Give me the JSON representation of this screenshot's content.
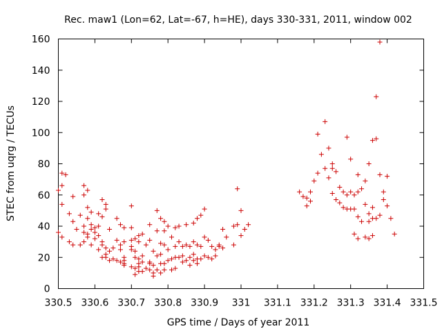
{
  "chart_data": {
    "type": "scatter",
    "title": "Rec. maw1 (Lon=62, Lat=-67, h=HE), days 330-331, 2011, window 002",
    "xlabel": "GPS time / Days of year 2011",
    "ylabel": "STEC from uqrg / TECUs",
    "xlim": [
      330.5,
      331.5
    ],
    "ylim": [
      0,
      160
    ],
    "x_ticks": [
      330.5,
      330.6,
      330.7,
      330.8,
      330.9,
      331.0,
      331.1,
      331.2,
      331.3,
      331.4,
      331.5
    ],
    "x_tick_labels": [
      "330.5",
      "330.6",
      "330.7",
      "330.8",
      "330.9",
      "331",
      "331.1",
      "331.2",
      "331.3",
      "331.4",
      "331.5"
    ],
    "y_ticks": [
      0,
      20,
      40,
      60,
      80,
      100,
      120,
      140,
      160
    ],
    "y_tick_labels": [
      "0",
      "20",
      "40",
      "60",
      "80",
      "100",
      "120",
      "140",
      "160"
    ],
    "grid": false,
    "legend": "none",
    "marker": "+",
    "color": "#cc0000",
    "points": [
      [
        330.5,
        63
      ],
      [
        330.5,
        36
      ],
      [
        330.51,
        74
      ],
      [
        330.51,
        66
      ],
      [
        330.51,
        54
      ],
      [
        330.51,
        33
      ],
      [
        330.52,
        73
      ],
      [
        330.53,
        48
      ],
      [
        330.53,
        30
      ],
      [
        330.54,
        59
      ],
      [
        330.54,
        43
      ],
      [
        330.54,
        28
      ],
      [
        330.55,
        38
      ],
      [
        330.56,
        47
      ],
      [
        330.56,
        28
      ],
      [
        330.57,
        66
      ],
      [
        330.57,
        60
      ],
      [
        330.57,
        40
      ],
      [
        330.57,
        36
      ],
      [
        330.57,
        30
      ],
      [
        330.58,
        63
      ],
      [
        330.58,
        52
      ],
      [
        330.58,
        45
      ],
      [
        330.58,
        35
      ],
      [
        330.58,
        33
      ],
      [
        330.59,
        49
      ],
      [
        330.59,
        41
      ],
      [
        330.59,
        38
      ],
      [
        330.59,
        28
      ],
      [
        330.6,
        39
      ],
      [
        330.6,
        36
      ],
      [
        330.6,
        32
      ],
      [
        330.61,
        48
      ],
      [
        330.61,
        40
      ],
      [
        330.61,
        34
      ],
      [
        330.61,
        25
      ],
      [
        330.62,
        57
      ],
      [
        330.62,
        46
      ],
      [
        330.62,
        30
      ],
      [
        330.62,
        28
      ],
      [
        330.62,
        20
      ],
      [
        330.63,
        54
      ],
      [
        330.63,
        51
      ],
      [
        330.63,
        26
      ],
      [
        330.63,
        22
      ],
      [
        330.63,
        20
      ],
      [
        330.64,
        38
      ],
      [
        330.64,
        24
      ],
      [
        330.64,
        18
      ],
      [
        330.65,
        26
      ],
      [
        330.65,
        19
      ],
      [
        330.66,
        45
      ],
      [
        330.66,
        31
      ],
      [
        330.66,
        18
      ],
      [
        330.67,
        41
      ],
      [
        330.67,
        28
      ],
      [
        330.67,
        25
      ],
      [
        330.67,
        17
      ],
      [
        330.68,
        39
      ],
      [
        330.68,
        30
      ],
      [
        330.68,
        20
      ],
      [
        330.68,
        18
      ],
      [
        330.68,
        16
      ],
      [
        330.68,
        15
      ],
      [
        330.7,
        53
      ],
      [
        330.7,
        39
      ],
      [
        330.7,
        31
      ],
      [
        330.7,
        27
      ],
      [
        330.7,
        25
      ],
      [
        330.7,
        14
      ],
      [
        330.71,
        32
      ],
      [
        330.71,
        24
      ],
      [
        330.71,
        20
      ],
      [
        330.71,
        13
      ],
      [
        330.71,
        9
      ],
      [
        330.72,
        34
      ],
      [
        330.72,
        30
      ],
      [
        330.72,
        19
      ],
      [
        330.72,
        16
      ],
      [
        330.72,
        14
      ],
      [
        330.72,
        11
      ],
      [
        330.73,
        35
      ],
      [
        330.73,
        21
      ],
      [
        330.73,
        17
      ],
      [
        330.73,
        11
      ],
      [
        330.74,
        28
      ],
      [
        330.74,
        13
      ],
      [
        330.75,
        41
      ],
      [
        330.75,
        31
      ],
      [
        330.75,
        17
      ],
      [
        330.75,
        16
      ],
      [
        330.75,
        12
      ],
      [
        330.76,
        24
      ],
      [
        330.76,
        15
      ],
      [
        330.76,
        10
      ],
      [
        330.76,
        8
      ],
      [
        330.77,
        50
      ],
      [
        330.77,
        37
      ],
      [
        330.77,
        21
      ],
      [
        330.77,
        12
      ],
      [
        330.78,
        45
      ],
      [
        330.78,
        29
      ],
      [
        330.78,
        22
      ],
      [
        330.78,
        16
      ],
      [
        330.78,
        10
      ],
      [
        330.79,
        43
      ],
      [
        330.79,
        37
      ],
      [
        330.79,
        28
      ],
      [
        330.79,
        16
      ],
      [
        330.79,
        12
      ],
      [
        330.8,
        40
      ],
      [
        330.8,
        25
      ],
      [
        330.8,
        18
      ],
      [
        330.81,
        33
      ],
      [
        330.81,
        19
      ],
      [
        330.81,
        12
      ],
      [
        330.82,
        39
      ],
      [
        330.82,
        27
      ],
      [
        330.82,
        20
      ],
      [
        330.82,
        13
      ],
      [
        330.83,
        40
      ],
      [
        330.83,
        30
      ],
      [
        330.83,
        20
      ],
      [
        330.84,
        27
      ],
      [
        330.84,
        21
      ],
      [
        330.84,
        17
      ],
      [
        330.85,
        41
      ],
      [
        330.85,
        28
      ],
      [
        330.85,
        18
      ],
      [
        330.86,
        27
      ],
      [
        330.86,
        20
      ],
      [
        330.86,
        15
      ],
      [
        330.87,
        42
      ],
      [
        330.87,
        30
      ],
      [
        330.87,
        22
      ],
      [
        330.87,
        18
      ],
      [
        330.88,
        45
      ],
      [
        330.88,
        28
      ],
      [
        330.88,
        19
      ],
      [
        330.88,
        16
      ],
      [
        330.89,
        47
      ],
      [
        330.89,
        27
      ],
      [
        330.89,
        19
      ],
      [
        330.9,
        51
      ],
      [
        330.9,
        33
      ],
      [
        330.9,
        21
      ],
      [
        330.91,
        31
      ],
      [
        330.91,
        20
      ],
      [
        330.92,
        27
      ],
      [
        330.92,
        19
      ],
      [
        330.93,
        25
      ],
      [
        330.93,
        21
      ],
      [
        330.94,
        27
      ],
      [
        330.94,
        28
      ],
      [
        330.95,
        26
      ],
      [
        330.95,
        38
      ],
      [
        330.96,
        33
      ],
      [
        330.98,
        40
      ],
      [
        330.98,
        28
      ],
      [
        330.99,
        64
      ],
      [
        330.99,
        41
      ],
      [
        331.0,
        50
      ],
      [
        331.0,
        34
      ],
      [
        331.01,
        38
      ],
      [
        331.02,
        41
      ],
      [
        331.16,
        62
      ],
      [
        331.17,
        59
      ],
      [
        331.18,
        58
      ],
      [
        331.18,
        53
      ],
      [
        331.19,
        62
      ],
      [
        331.19,
        56
      ],
      [
        331.2,
        69
      ],
      [
        331.21,
        74
      ],
      [
        331.21,
        99
      ],
      [
        331.22,
        86
      ],
      [
        331.23,
        107
      ],
      [
        331.23,
        77
      ],
      [
        331.24,
        90
      ],
      [
        331.24,
        71
      ],
      [
        331.25,
        80
      ],
      [
        331.25,
        77
      ],
      [
        331.25,
        61
      ],
      [
        331.26,
        75
      ],
      [
        331.26,
        57
      ],
      [
        331.27,
        65
      ],
      [
        331.27,
        55
      ],
      [
        331.28,
        62
      ],
      [
        331.28,
        52
      ],
      [
        331.29,
        97
      ],
      [
        331.29,
        60
      ],
      [
        331.29,
        51
      ],
      [
        331.3,
        83
      ],
      [
        331.3,
        62
      ],
      [
        331.3,
        51
      ],
      [
        331.31,
        60
      ],
      [
        331.31,
        51
      ],
      [
        331.31,
        35
      ],
      [
        331.32,
        73
      ],
      [
        331.32,
        62
      ],
      [
        331.32,
        46
      ],
      [
        331.32,
        32
      ],
      [
        331.33,
        64
      ],
      [
        331.33,
        43
      ],
      [
        331.34,
        69
      ],
      [
        331.34,
        54
      ],
      [
        331.34,
        33
      ],
      [
        331.35,
        80
      ],
      [
        331.35,
        48
      ],
      [
        331.35,
        43
      ],
      [
        331.35,
        32
      ],
      [
        331.36,
        95
      ],
      [
        331.36,
        52
      ],
      [
        331.36,
        45
      ],
      [
        331.36,
        34
      ],
      [
        331.37,
        123
      ],
      [
        331.37,
        96
      ],
      [
        331.37,
        45
      ],
      [
        331.38,
        158
      ],
      [
        331.38,
        73
      ],
      [
        331.38,
        47
      ],
      [
        331.39,
        62
      ],
      [
        331.39,
        57
      ],
      [
        331.4,
        72
      ],
      [
        331.4,
        53
      ],
      [
        331.41,
        45
      ],
      [
        331.42,
        35
      ]
    ]
  }
}
